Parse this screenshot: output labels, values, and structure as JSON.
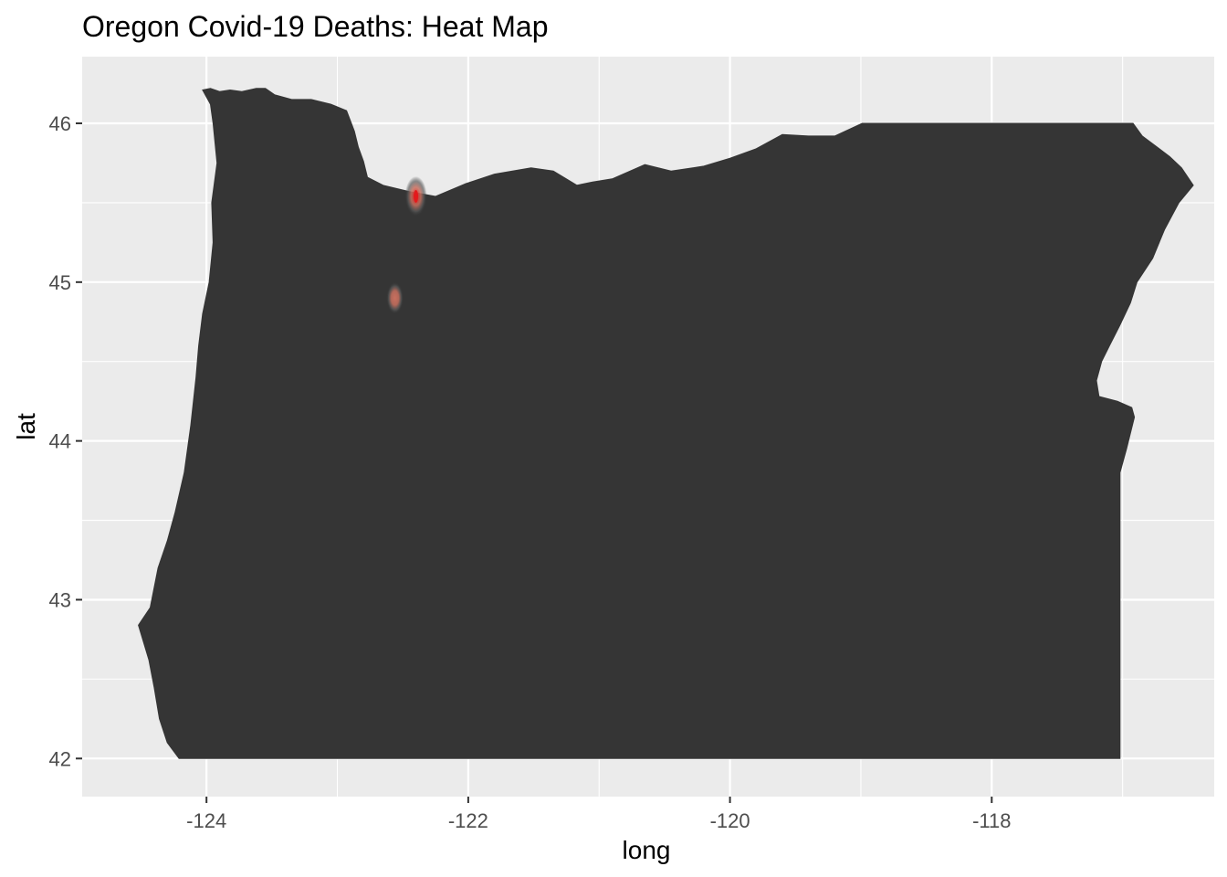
{
  "chart_data": {
    "type": "heatmap",
    "title": "Oregon Covid-19 Deaths: Heat Map",
    "xlabel": "long",
    "ylabel": "lat",
    "xlim": [
      -124.95,
      -116.3
    ],
    "ylim": [
      41.76,
      46.42
    ],
    "x_ticks": [
      -124,
      -122,
      -120,
      -118
    ],
    "x_tick_labels": [
      "-124",
      "-122",
      "-120",
      "-118"
    ],
    "y_ticks": [
      42,
      43,
      44,
      45,
      46
    ],
    "y_tick_labels": [
      "42",
      "43",
      "44",
      "45",
      "46"
    ],
    "grid": true,
    "legend": "none",
    "colors": {
      "panel_background": "#ebebeb",
      "grid_line": "#ffffff",
      "state_fill": "#353535",
      "hotspot_low": "#5a5a5a",
      "hotspot_mid": "#c8705f",
      "hotspot_high": "#e31a1c"
    },
    "region": {
      "name": "Oregon",
      "outline": [
        [
          -124.03,
          46.21
        ],
        [
          -123.97,
          46.22
        ],
        [
          -123.9,
          46.2
        ],
        [
          -123.82,
          46.21
        ],
        [
          -123.73,
          46.2
        ],
        [
          -123.62,
          46.22
        ],
        [
          -123.55,
          46.22
        ],
        [
          -123.48,
          46.18
        ],
        [
          -123.35,
          46.15
        ],
        [
          -123.2,
          46.15
        ],
        [
          -123.05,
          46.12
        ],
        [
          -122.93,
          46.08
        ],
        [
          -122.87,
          45.95
        ],
        [
          -122.84,
          45.85
        ],
        [
          -122.8,
          45.76
        ],
        [
          -122.77,
          45.66
        ],
        [
          -122.65,
          45.61
        ],
        [
          -122.45,
          45.57
        ],
        [
          -122.25,
          45.54
        ],
        [
          -122.02,
          45.62
        ],
        [
          -121.8,
          45.68
        ],
        [
          -121.52,
          45.72
        ],
        [
          -121.35,
          45.7
        ],
        [
          -121.17,
          45.61
        ],
        [
          -121.05,
          45.63
        ],
        [
          -120.9,
          45.65
        ],
        [
          -120.65,
          45.74
        ],
        [
          -120.45,
          45.7
        ],
        [
          -120.2,
          45.73
        ],
        [
          -120.0,
          45.78
        ],
        [
          -119.8,
          45.84
        ],
        [
          -119.6,
          45.93
        ],
        [
          -119.4,
          45.92
        ],
        [
          -119.2,
          45.92
        ],
        [
          -118.99,
          46.0
        ],
        [
          -118.0,
          46.0
        ],
        [
          -116.92,
          46.0
        ],
        [
          -116.85,
          45.92
        ],
        [
          -116.72,
          45.84
        ],
        [
          -116.64,
          45.79
        ],
        [
          -116.55,
          45.72
        ],
        [
          -116.46,
          45.61
        ],
        [
          -116.57,
          45.5
        ],
        [
          -116.68,
          45.33
        ],
        [
          -116.77,
          45.15
        ],
        [
          -116.89,
          45.0
        ],
        [
          -116.94,
          44.87
        ],
        [
          -117.02,
          44.73
        ],
        [
          -117.1,
          44.6
        ],
        [
          -117.16,
          44.5
        ],
        [
          -117.2,
          44.38
        ],
        [
          -117.18,
          44.28
        ],
        [
          -117.04,
          44.25
        ],
        [
          -116.93,
          44.21
        ],
        [
          -116.91,
          44.15
        ],
        [
          -116.97,
          43.95
        ],
        [
          -117.02,
          43.8
        ],
        [
          -117.02,
          42.0
        ],
        [
          -120.0,
          42.0
        ],
        [
          -121.0,
          42.0
        ],
        [
          -122.0,
          42.0
        ],
        [
          -123.0,
          42.0
        ],
        [
          -124.21,
          42.0
        ],
        [
          -124.3,
          42.1
        ],
        [
          -124.36,
          42.25
        ],
        [
          -124.4,
          42.45
        ],
        [
          -124.44,
          42.62
        ],
        [
          -124.52,
          42.84
        ],
        [
          -124.43,
          42.95
        ],
        [
          -124.37,
          43.2
        ],
        [
          -124.3,
          43.37
        ],
        [
          -124.24,
          43.55
        ],
        [
          -124.17,
          43.8
        ],
        [
          -124.12,
          44.1
        ],
        [
          -124.08,
          44.4
        ],
        [
          -124.06,
          44.6
        ],
        [
          -124.03,
          44.8
        ],
        [
          -123.98,
          45.0
        ],
        [
          -123.95,
          45.25
        ],
        [
          -123.96,
          45.5
        ],
        [
          -123.92,
          45.75
        ],
        [
          -123.95,
          46.0
        ],
        [
          -123.97,
          46.12
        ]
      ]
    },
    "hotspots": [
      {
        "lon": -122.4,
        "lat": 45.54,
        "intensity": 1.0
      },
      {
        "lon": -122.56,
        "lat": 44.9,
        "intensity": 0.55
      }
    ]
  }
}
